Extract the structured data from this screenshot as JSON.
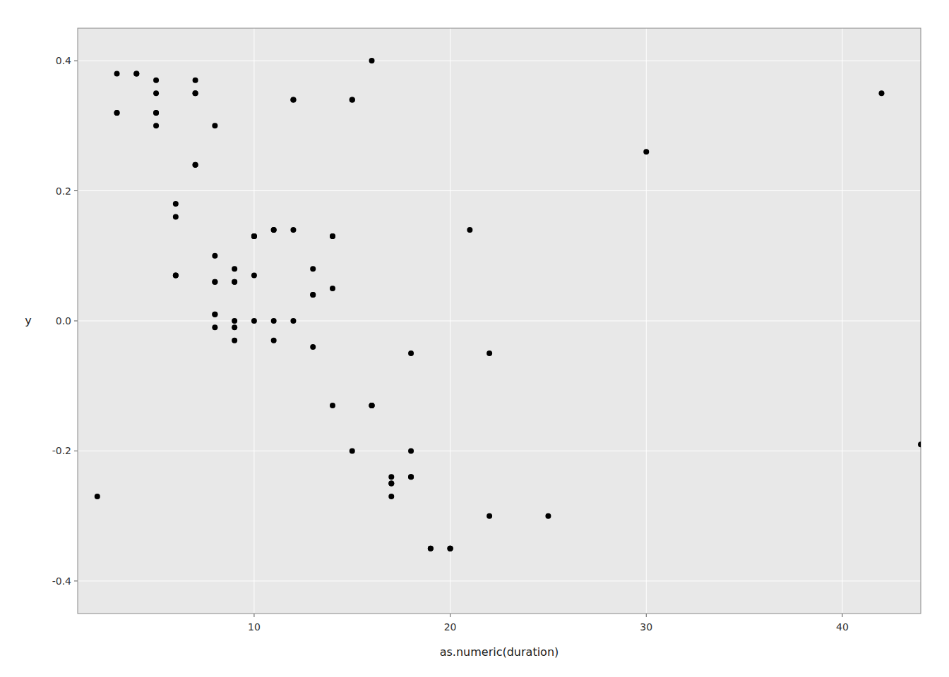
{
  "chart_data": {
    "type": "scatter",
    "xlabel": "as.numeric(duration)",
    "ylabel": "y",
    "x": [
      3,
      3,
      4,
      5,
      5,
      5,
      5,
      6,
      6,
      6,
      7,
      7,
      7,
      7,
      8,
      8,
      8,
      8,
      8,
      8,
      9,
      9,
      9,
      9,
      9,
      10,
      10,
      10,
      10,
      11,
      11,
      11,
      12,
      12,
      12,
      13,
      13,
      13,
      14,
      14,
      14,
      15,
      15,
      16,
      16,
      16,
      17,
      17,
      17,
      18,
      18,
      18,
      19,
      19,
      20,
      20,
      21,
      22,
      25,
      30,
      44,
      42,
      2,
      3,
      4,
      5,
      6,
      7,
      8,
      9,
      10,
      11,
      12,
      13,
      14,
      15,
      16,
      17,
      18,
      20,
      22
    ],
    "values": [
      0.38,
      0.32,
      0.38,
      0.37,
      0.35,
      0.32,
      0.3,
      0.18,
      0.16,
      0.07,
      0.37,
      0.35,
      0.24,
      0.24,
      0.3,
      0.1,
      0.06,
      0.01,
      0.01,
      -0.01,
      0.08,
      0.06,
      0.0,
      -0.01,
      -0.03,
      0.13,
      0.13,
      0.07,
      0.0,
      0.14,
      0.0,
      -0.03,
      0.34,
      0.14,
      0.0,
      0.08,
      0.04,
      -0.04,
      0.13,
      0.05,
      -0.13,
      0.34,
      -0.2,
      0.4,
      -0.13,
      -0.13,
      -0.24,
      -0.25,
      -0.27,
      -0.05,
      -0.24,
      -0.2,
      -0.35,
      -0.35,
      -0.35,
      -0.35,
      0.14,
      -0.05,
      -0.3,
      0.26,
      -0.19,
      0.35,
      -0.27,
      0.32,
      0.38,
      0.32,
      0.07,
      0.35,
      0.06,
      0.06,
      0.13,
      0.14,
      0.34,
      0.04,
      0.13,
      0.34,
      -0.13,
      -0.25,
      -0.24,
      -0.35,
      -0.3
    ],
    "color": "#000000",
    "xlim": [
      1,
      44
    ],
    "ylim": [
      -0.45,
      0.45
    ],
    "xticks": [
      10,
      20,
      30,
      40
    ],
    "yticks": [
      -0.4,
      -0.2,
      {
        "value": 0,
        "label": "0.0"
      },
      0.2,
      0.4
    ],
    "grid": true
  }
}
